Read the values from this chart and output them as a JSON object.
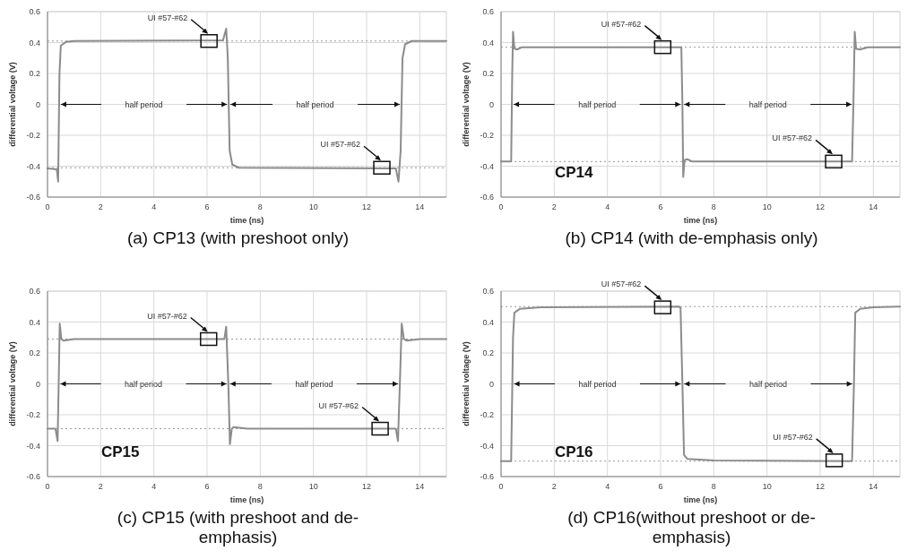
{
  "chart_data": [
    {
      "type": "line",
      "title": "(a) CP13 (with preshoot only)",
      "xlabel": "time (ns)",
      "ylabel": "differential voltage (V)",
      "xlim": [
        0,
        15
      ],
      "xticks": [
        0,
        2,
        4,
        6,
        8,
        10,
        12,
        14
      ],
      "ylim": [
        -0.6,
        0.6
      ],
      "yticks": [
        -0.6,
        -0.4,
        -0.2,
        0,
        0.2,
        0.4,
        0.6
      ],
      "grid": true,
      "marker": "none",
      "line_style": "solid",
      "series": [
        {
          "color": "#8c8c8c",
          "x": [
            0,
            0.35,
            0.4,
            0.45,
            0.5,
            0.7,
            1,
            6.6,
            6.72,
            6.78,
            6.85,
            6.95,
            7.2,
            13.1,
            13.2,
            13.28,
            13.35,
            13.45,
            13.7,
            15
          ],
          "values": [
            -0.415,
            -0.42,
            -0.5,
            0.2,
            0.38,
            0.405,
            0.41,
            0.415,
            0.49,
            0.3,
            -0.3,
            -0.39,
            -0.41,
            -0.415,
            -0.5,
            -0.3,
            0.3,
            0.39,
            0.41,
            0.41
          ]
        }
      ],
      "ref_lines": [
        {
          "axis": "y",
          "value": 0.41,
          "line_style": "dotted",
          "color": "#999999"
        },
        {
          "axis": "y",
          "value": -0.41,
          "line_style": "dotted",
          "color": "#999999"
        }
      ],
      "annotations": [
        "UI #57-#62",
        "UI #57-#62",
        "half period",
        "half period"
      ]
    },
    {
      "type": "line",
      "title": "(b) CP14 (with de-emphasis only)",
      "xlabel": "time (ns)",
      "ylabel": "differential voltage (V)",
      "xlim": [
        0,
        15
      ],
      "xticks": [
        0,
        2,
        4,
        6,
        8,
        10,
        12,
        14
      ],
      "ylim": [
        -0.6,
        0.6
      ],
      "yticks": [
        -0.6,
        -0.4,
        -0.2,
        0,
        0.2,
        0.4,
        0.6
      ],
      "grid": true,
      "marker": "none",
      "line_style": "solid",
      "series": [
        {
          "color": "#8c8c8c",
          "x": [
            0,
            0.38,
            0.42,
            0.45,
            0.5,
            0.6,
            0.8,
            6.78,
            6.82,
            6.85,
            6.9,
            7,
            7.2,
            13.2,
            13.25,
            13.3,
            13.35,
            13.5,
            13.8,
            15
          ],
          "values": [
            -0.37,
            -0.37,
            0.2,
            0.47,
            0.36,
            0.355,
            0.37,
            0.37,
            0,
            -0.47,
            -0.36,
            -0.355,
            -0.37,
            -0.37,
            0,
            0.47,
            0.36,
            0.355,
            0.37,
            0.37
          ]
        }
      ],
      "ref_lines": [
        {
          "axis": "y",
          "value": 0.37,
          "line_style": "dotted",
          "color": "#999999"
        },
        {
          "axis": "y",
          "value": -0.37,
          "line_style": "dotted",
          "color": "#999999"
        }
      ],
      "annotations": [
        "UI #57-#62",
        "UI #57-#62",
        "half period",
        "half period",
        "CP14"
      ]
    },
    {
      "type": "line",
      "title": "(c) CP15 (with preshoot and de-emphasis)",
      "xlabel": "time (ns)",
      "ylabel": "differential voltage (V)",
      "xlim": [
        0,
        15
      ],
      "xticks": [
        0,
        2,
        4,
        6,
        8,
        10,
        12,
        14
      ],
      "ylim": [
        -0.6,
        0.6
      ],
      "yticks": [
        -0.6,
        -0.4,
        -0.2,
        0,
        0.2,
        0.4,
        0.6
      ],
      "grid": true,
      "marker": "none",
      "line_style": "solid",
      "series": [
        {
          "color": "#8c8c8c",
          "x": [
            0,
            0.3,
            0.38,
            0.42,
            0.46,
            0.52,
            0.6,
            1,
            6.65,
            6.72,
            6.8,
            6.86,
            6.93,
            7,
            7.5,
            13.1,
            13.18,
            13.25,
            13.32,
            13.4,
            13.5,
            14,
            15
          ],
          "values": [
            -0.29,
            -0.29,
            -0.37,
            0,
            0.39,
            0.29,
            0.28,
            0.29,
            0.29,
            0.37,
            0,
            -0.39,
            -0.29,
            -0.28,
            -0.29,
            -0.29,
            -0.37,
            0,
            0.39,
            0.29,
            0.28,
            0.29,
            0.29
          ]
        }
      ],
      "ref_lines": [
        {
          "axis": "y",
          "value": 0.29,
          "line_style": "dotted",
          "color": "#999999"
        },
        {
          "axis": "y",
          "value": -0.29,
          "line_style": "dotted",
          "color": "#999999"
        }
      ],
      "annotations": [
        "UI #57-#62",
        "UI #57-#62",
        "half period",
        "half period",
        "CP15"
      ]
    },
    {
      "type": "line",
      "title": "(d) CP16(without preshoot or de-emphasis)",
      "xlabel": "time (ns)",
      "ylabel": "differential voltage (V)",
      "xlim": [
        0,
        15
      ],
      "xticks": [
        0,
        2,
        4,
        6,
        8,
        10,
        12,
        14
      ],
      "ylim": [
        -0.6,
        0.6
      ],
      "yticks": [
        -0.6,
        -0.4,
        -0.2,
        0,
        0.2,
        0.4,
        0.6
      ],
      "grid": true,
      "marker": "none",
      "line_style": "solid",
      "series": [
        {
          "color": "#8c8c8c",
          "x": [
            0,
            0.38,
            0.45,
            0.5,
            0.7,
            1.5,
            6.7,
            6.75,
            6.82,
            6.88,
            7,
            8,
            13.2,
            13.27,
            13.32,
            13.5,
            14,
            15
          ],
          "values": [
            -0.5,
            -0.5,
            0.3,
            0.46,
            0.485,
            0.495,
            0.5,
            0.49,
            0,
            -0.46,
            -0.485,
            -0.495,
            -0.5,
            0,
            0.46,
            0.485,
            0.495,
            0.5
          ]
        }
      ],
      "ref_lines": [
        {
          "axis": "y",
          "value": 0.5,
          "line_style": "dotted",
          "color": "#999999"
        },
        {
          "axis": "y",
          "value": -0.5,
          "line_style": "dotted",
          "color": "#999999"
        }
      ],
      "annotations": [
        "UI #57-#62",
        "UI #57-#62",
        "half period",
        "half period",
        "CP16"
      ]
    }
  ]
}
